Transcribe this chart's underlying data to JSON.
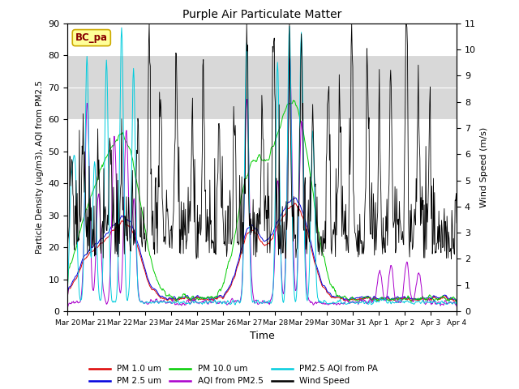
{
  "title": "Purple Air Particulate Matter",
  "ylabel_left": "Particle Density (ug/m3), AQI from PM2.5",
  "ylabel_right": "Wind Speed (m/s)",
  "xlabel": "Time",
  "ylim_left": [
    0,
    90
  ],
  "ylim_right": [
    0.0,
    11.0
  ],
  "yticks_left": [
    0,
    10,
    20,
    30,
    40,
    50,
    60,
    70,
    80,
    90
  ],
  "yticks_right": [
    0.0,
    1.0,
    2.0,
    3.0,
    4.0,
    5.0,
    6.0,
    7.0,
    8.0,
    9.0,
    10.0,
    11.0
  ],
  "shaded_band": [
    60,
    80
  ],
  "shaded_color": "#d8d8d8",
  "annotation_text": "BC_pa",
  "annotation_box_color": "#ffff99",
  "annotation_border_color": "#ccaa00",
  "annotation_text_color": "#880000",
  "series_colors": {
    "pm1": "#dd0000",
    "pm25": "#0000dd",
    "pm10": "#00cc00",
    "aqi_pm25": "#aa00cc",
    "aqi_pa": "#00ccdd",
    "wind": "#000000"
  },
  "legend_entries": [
    {
      "label": "PM 1.0 um",
      "color": "#dd0000"
    },
    {
      "label": "PM 2.5 um",
      "color": "#0000dd"
    },
    {
      "label": "PM 10.0 um",
      "color": "#00cc00"
    },
    {
      "label": "AQI from PM2.5",
      "color": "#aa00cc"
    },
    {
      "label": "PM2.5 AQI from PA",
      "color": "#00ccdd"
    },
    {
      "label": "Wind Speed",
      "color": "#000000"
    }
  ],
  "xtick_labels": [
    "Mar 20",
    "Mar 21",
    "Mar 22",
    "Mar 23",
    "Mar 24",
    "Mar 25",
    "Mar 26",
    "Mar 27",
    "Mar 28",
    "Mar 29",
    "Mar 30",
    "Mar 31",
    "Apr 1",
    "Apr 2",
    "Apr 3",
    "Apr 4"
  ],
  "background_color": "#ffffff",
  "plot_bg_color": "#ffffff"
}
